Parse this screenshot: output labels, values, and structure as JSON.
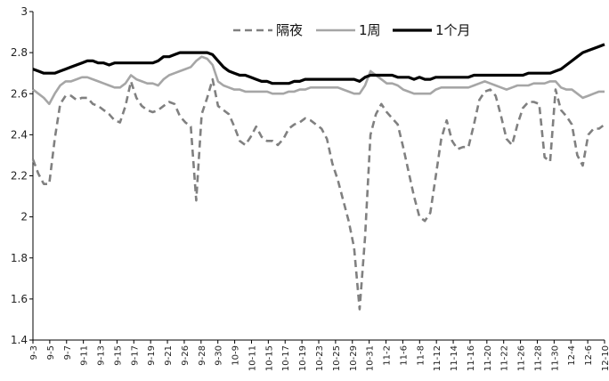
{
  "chart_data": {
    "type": "line",
    "title": "",
    "xlabel": "",
    "ylabel": "",
    "ylim": [
      1.4,
      3.0
    ],
    "yticks": [
      1.4,
      1.6,
      1.8,
      2,
      2.2,
      2.4,
      2.6,
      2.8,
      3
    ],
    "ytick_labels": [
      "1.4",
      "1.6",
      "1.8",
      "2",
      "2.2",
      "2.4",
      "2.6",
      "2.8",
      "3"
    ],
    "grid": false,
    "legend_position": "top-center",
    "x_tick_labels": [
      "9-3",
      "9-5",
      "9-7",
      "9-11",
      "9-13",
      "9-15",
      "9-17",
      "9-19",
      "9-21",
      "9-26",
      "9-28",
      "9-30",
      "10-9",
      "10-11",
      "10-15",
      "10-17",
      "10-19",
      "10-23",
      "10-25",
      "10-29",
      "10-31",
      "11-2",
      "11-6",
      "11-8",
      "11-12",
      "11-14",
      "11-16",
      "11-20",
      "11-22",
      "11-26",
      "11-28",
      "11-30",
      "12-4",
      "12-6",
      "12-10"
    ],
    "series": [
      {
        "name": "隔夜",
        "style": "dashed",
        "color": "#808080",
        "values": [
          2.28,
          2.21,
          2.16,
          2.16,
          2.38,
          2.55,
          2.59,
          2.59,
          2.57,
          2.58,
          2.58,
          2.55,
          2.54,
          2.52,
          2.5,
          2.47,
          2.46,
          2.54,
          2.66,
          2.58,
          2.54,
          2.52,
          2.51,
          2.52,
          2.54,
          2.56,
          2.55,
          2.49,
          2.46,
          2.44,
          2.08,
          2.5,
          2.58,
          2.67,
          2.54,
          2.52,
          2.5,
          2.44,
          2.37,
          2.35,
          2.39,
          2.44,
          2.39,
          2.37,
          2.37,
          2.35,
          2.38,
          2.43,
          2.45,
          2.46,
          2.48,
          2.47,
          2.45,
          2.43,
          2.38,
          2.26,
          2.18,
          2.08,
          1.98,
          1.85,
          1.55,
          1.9,
          2.4,
          2.5,
          2.55,
          2.51,
          2.48,
          2.45,
          2.34,
          2.22,
          2.1,
          2.0,
          1.98,
          2.02,
          2.2,
          2.38,
          2.47,
          2.37,
          2.33,
          2.34,
          2.34,
          2.45,
          2.57,
          2.61,
          2.62,
          2.59,
          2.49,
          2.38,
          2.35,
          2.45,
          2.53,
          2.56,
          2.56,
          2.55,
          2.29,
          2.27,
          2.62,
          2.52,
          2.49,
          2.45,
          2.3,
          2.25,
          2.4,
          2.43,
          2.43,
          2.45
        ]
      },
      {
        "name": "1周",
        "style": "solid",
        "color": "#a6a6a6",
        "values": [
          2.62,
          2.6,
          2.58,
          2.55,
          2.6,
          2.64,
          2.66,
          2.66,
          2.67,
          2.68,
          2.68,
          2.67,
          2.66,
          2.65,
          2.64,
          2.63,
          2.63,
          2.65,
          2.69,
          2.67,
          2.66,
          2.65,
          2.65,
          2.64,
          2.67,
          2.69,
          2.7,
          2.71,
          2.72,
          2.73,
          2.76,
          2.78,
          2.77,
          2.74,
          2.66,
          2.64,
          2.63,
          2.62,
          2.62,
          2.61,
          2.61,
          2.61,
          2.61,
          2.61,
          2.6,
          2.6,
          2.6,
          2.61,
          2.61,
          2.62,
          2.62,
          2.63,
          2.63,
          2.63,
          2.63,
          2.63,
          2.63,
          2.62,
          2.61,
          2.6,
          2.6,
          2.64,
          2.71,
          2.69,
          2.67,
          2.65,
          2.65,
          2.64,
          2.62,
          2.61,
          2.6,
          2.6,
          2.6,
          2.6,
          2.62,
          2.63,
          2.63,
          2.63,
          2.63,
          2.63,
          2.63,
          2.64,
          2.65,
          2.66,
          2.65,
          2.64,
          2.63,
          2.62,
          2.63,
          2.64,
          2.64,
          2.64,
          2.65,
          2.65,
          2.65,
          2.66,
          2.66,
          2.63,
          2.62,
          2.62,
          2.6,
          2.58,
          2.59,
          2.6,
          2.61,
          2.61
        ]
      },
      {
        "name": "1个月",
        "style": "solid",
        "color": "#000000",
        "values": [
          2.72,
          2.71,
          2.7,
          2.7,
          2.7,
          2.71,
          2.72,
          2.73,
          2.74,
          2.75,
          2.76,
          2.76,
          2.75,
          2.75,
          2.74,
          2.75,
          2.75,
          2.75,
          2.75,
          2.75,
          2.75,
          2.75,
          2.75,
          2.76,
          2.78,
          2.78,
          2.79,
          2.8,
          2.8,
          2.8,
          2.8,
          2.8,
          2.8,
          2.79,
          2.76,
          2.73,
          2.71,
          2.7,
          2.69,
          2.69,
          2.68,
          2.67,
          2.66,
          2.66,
          2.65,
          2.65,
          2.65,
          2.65,
          2.66,
          2.66,
          2.67,
          2.67,
          2.67,
          2.67,
          2.67,
          2.67,
          2.67,
          2.67,
          2.67,
          2.67,
          2.66,
          2.68,
          2.69,
          2.69,
          2.69,
          2.69,
          2.69,
          2.68,
          2.68,
          2.68,
          2.67,
          2.68,
          2.67,
          2.67,
          2.68,
          2.68,
          2.68,
          2.68,
          2.68,
          2.68,
          2.68,
          2.69,
          2.69,
          2.69,
          2.69,
          2.69,
          2.69,
          2.69,
          2.69,
          2.69,
          2.69,
          2.7,
          2.7,
          2.7,
          2.7,
          2.7,
          2.71,
          2.72,
          2.74,
          2.76,
          2.78,
          2.8,
          2.81,
          2.82,
          2.83,
          2.84
        ]
      }
    ]
  }
}
